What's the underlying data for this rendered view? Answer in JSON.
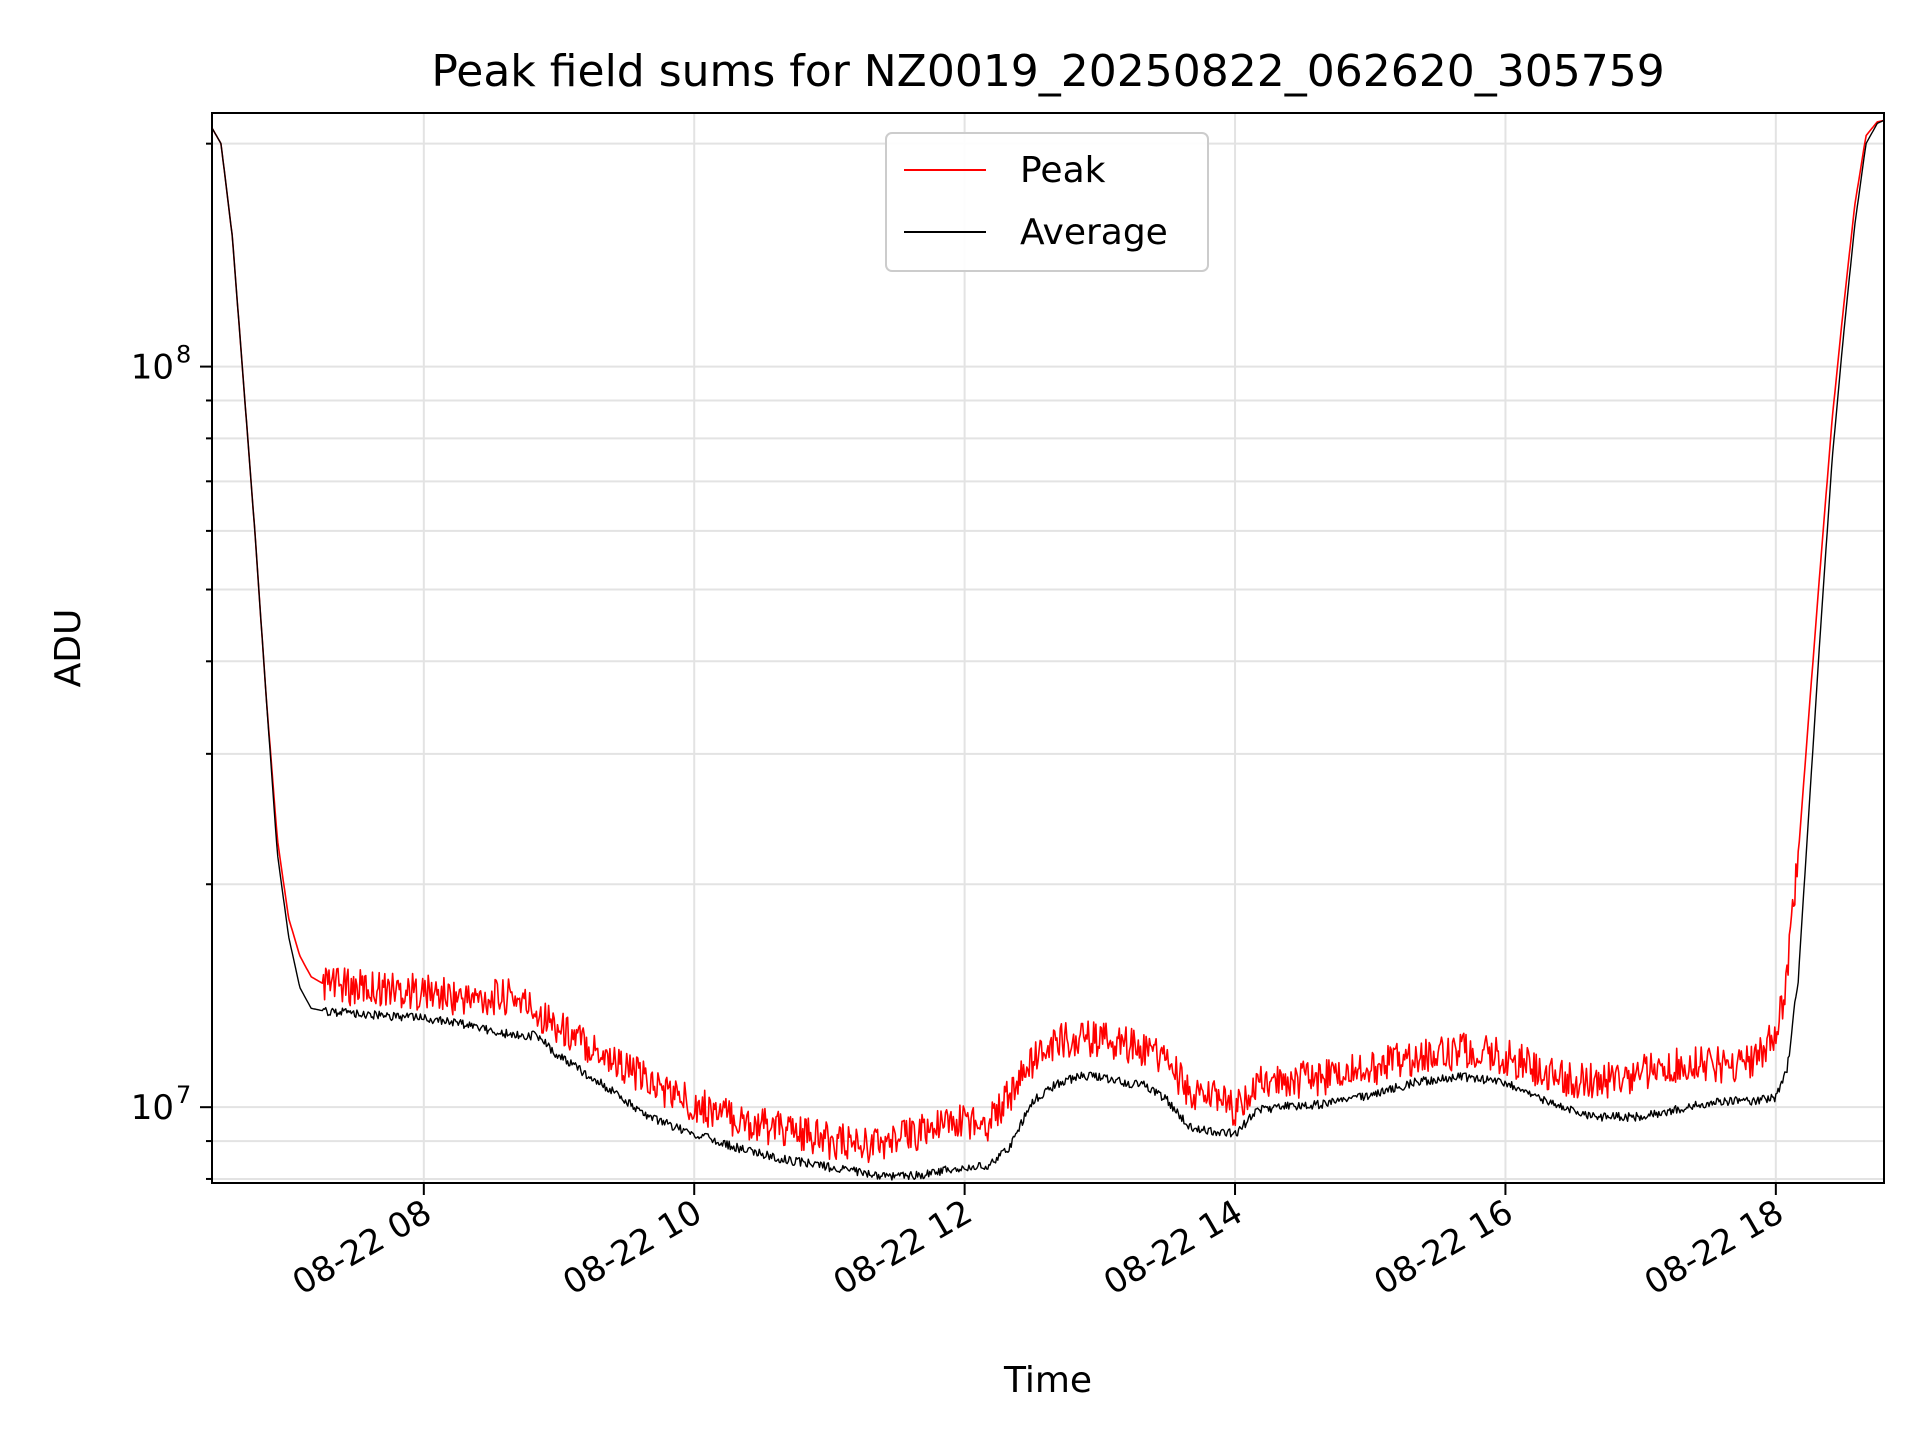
{
  "chart_data": {
    "type": "line",
    "title": "Peak field sums for NZ0019_20250822_062620_305759",
    "xlabel": "Time",
    "ylabel": "ADU",
    "y_scale": "log",
    "grid": true,
    "legend_position": "top-center",
    "xlim": [
      "2025-08-22 06:26",
      "2025-08-22 18:48"
    ],
    "ylim": [
      7900000,
      220000000
    ],
    "x_ticks": [
      {
        "at": "2025-08-22 08:00",
        "label": "08-22 08"
      },
      {
        "at": "2025-08-22 10:00",
        "label": "08-22 10"
      },
      {
        "at": "2025-08-22 12:00",
        "label": "08-22 12"
      },
      {
        "at": "2025-08-22 14:00",
        "label": "08-22 14"
      },
      {
        "at": "2025-08-22 16:00",
        "label": "08-22 16"
      },
      {
        "at": "2025-08-22 18:00",
        "label": "08-22 18"
      }
    ],
    "y_ticks": [
      {
        "value": 10000000,
        "label_base": "10",
        "label_exp": "7"
      },
      {
        "value": 100000000,
        "label_base": "10",
        "label_exp": "8"
      }
    ],
    "series": [
      {
        "name": "Peak",
        "color": "#ff0000",
        "x": [
          "06:26",
          "06:30",
          "06:35",
          "06:40",
          "06:45",
          "06:50",
          "06:55",
          "07:00",
          "07:05",
          "07:10",
          "07:15",
          "07:20",
          "07:30",
          "07:40",
          "08:00",
          "08:20",
          "08:40",
          "08:50",
          "09:00",
          "09:20",
          "09:40",
          "10:00",
          "10:20",
          "10:40",
          "11:00",
          "11:20",
          "11:30",
          "11:40",
          "11:50",
          "12:00",
          "12:10",
          "12:20",
          "12:30",
          "12:40",
          "12:50",
          "13:00",
          "13:10",
          "13:20",
          "13:30",
          "13:40",
          "13:50",
          "14:00",
          "14:10",
          "14:20",
          "14:40",
          "15:00",
          "15:20",
          "15:40",
          "16:00",
          "16:10",
          "16:20",
          "16:40",
          "17:00",
          "17:20",
          "17:40",
          "17:50",
          "18:00",
          "18:05",
          "18:10",
          "18:15",
          "18:20",
          "18:25",
          "18:30",
          "18:35",
          "18:40",
          "18:45",
          "18:48"
        ],
        "y": [
          210000000,
          200000000,
          150000000,
          95000000,
          60000000,
          36000000,
          23000000,
          18000000,
          16000000,
          15000000,
          14700000,
          14600000,
          14500000,
          14500000,
          14300000,
          14000000,
          14100000,
          13500000,
          12800000,
          11800000,
          10800000,
          10100000,
          9600000,
          9300000,
          9000000,
          8900000,
          9000000,
          9300000,
          9400000,
          9600000,
          9500000,
          10400000,
          11500000,
          12200000,
          12400000,
          12300000,
          12200000,
          12000000,
          11500000,
          10400000,
          10300000,
          9900000,
          10700000,
          10800000,
          11000000,
          11300000,
          11700000,
          11900000,
          11700000,
          11400000,
          11000000,
          10800000,
          11100000,
          11400000,
          11400000,
          11500000,
          12500000,
          15000000,
          22000000,
          35000000,
          55000000,
          85000000,
          120000000,
          165000000,
          205000000,
          214000000,
          215000000
        ]
      },
      {
        "name": "Average",
        "color": "#000000",
        "x": [
          "06:26",
          "06:30",
          "06:35",
          "06:40",
          "06:45",
          "06:50",
          "06:55",
          "07:00",
          "07:05",
          "07:10",
          "07:15",
          "07:20",
          "07:30",
          "07:40",
          "08:00",
          "08:20",
          "08:40",
          "08:50",
          "09:00",
          "09:20",
          "09:40",
          "10:00",
          "10:20",
          "10:40",
          "11:00",
          "11:20",
          "11:30",
          "11:40",
          "11:50",
          "12:00",
          "12:10",
          "12:20",
          "12:30",
          "12:40",
          "12:50",
          "13:00",
          "13:10",
          "13:20",
          "13:30",
          "13:40",
          "13:50",
          "14:00",
          "14:10",
          "14:20",
          "14:40",
          "15:00",
          "15:20",
          "15:40",
          "16:00",
          "16:10",
          "16:20",
          "16:40",
          "17:00",
          "17:20",
          "17:40",
          "17:50",
          "18:00",
          "18:05",
          "18:10",
          "18:15",
          "18:20",
          "18:25",
          "18:30",
          "18:35",
          "18:40",
          "18:45",
          "18:48"
        ],
        "y": [
          210000000,
          200000000,
          150000000,
          95000000,
          60000000,
          36000000,
          22000000,
          17000000,
          14500000,
          13600000,
          13500000,
          13450000,
          13400000,
          13300000,
          13200000,
          12900000,
          12500000,
          12500000,
          11700000,
          10700000,
          9700000,
          9200000,
          8800000,
          8500000,
          8300000,
          8100000,
          8050000,
          8100000,
          8200000,
          8300000,
          8300000,
          8800000,
          10200000,
          10700000,
          11000000,
          11000000,
          10800000,
          10700000,
          10200000,
          9400000,
          9300000,
          9200000,
          9900000,
          10000000,
          10100000,
          10400000,
          10800000,
          11000000,
          10800000,
          10500000,
          10100000,
          9700000,
          9700000,
          10000000,
          10200000,
          10200000,
          10300000,
          11200000,
          15000000,
          26000000,
          45000000,
          75000000,
          110000000,
          155000000,
          200000000,
          213000000,
          215000000
        ]
      }
    ]
  }
}
